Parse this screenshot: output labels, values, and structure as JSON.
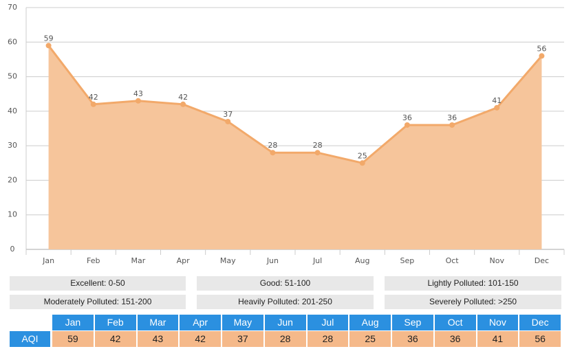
{
  "chart_data": {
    "type": "area",
    "categories": [
      "Jan",
      "Feb",
      "Mar",
      "Apr",
      "May",
      "Jun",
      "Jul",
      "Aug",
      "Sep",
      "Oct",
      "Nov",
      "Dec"
    ],
    "series": [
      {
        "name": "AQI",
        "color": "#f2a96a",
        "fill": "#f6c59b",
        "values": [
          59,
          42,
          43,
          42,
          37,
          28,
          28,
          25,
          36,
          36,
          41,
          56
        ]
      }
    ],
    "ylim": [
      0,
      70
    ],
    "yticks": [
      0,
      10,
      20,
      30,
      40,
      50,
      60,
      70
    ],
    "grid": true
  },
  "aqi_levels": [
    "Excellent: 0-50",
    "Good: 51-100",
    "Lightly Polluted: 101-150",
    "Moderately Polluted: 151-200",
    "Heavily Polluted: 201-250",
    "Severely Polluted: >250"
  ]
}
